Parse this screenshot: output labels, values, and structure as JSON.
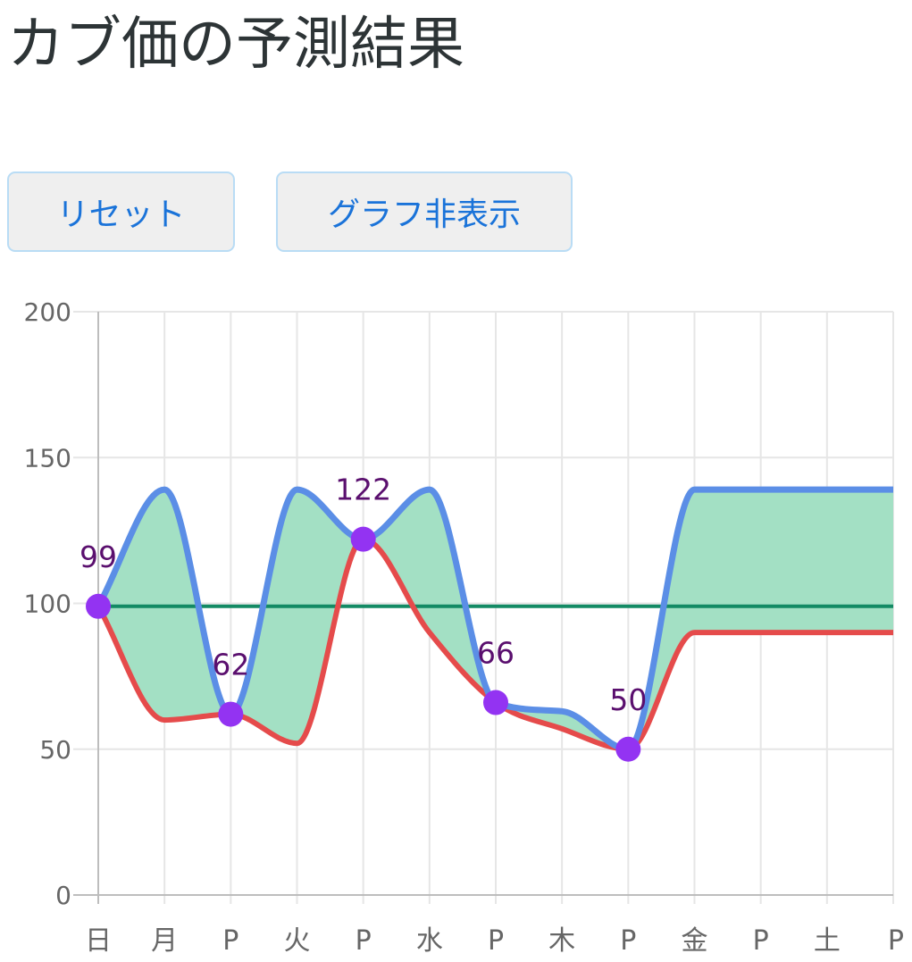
{
  "page": {
    "title": "カブ価の予測結果"
  },
  "buttons": {
    "reset_label": "リセット",
    "hide_graph_label": "グラフ非表示"
  },
  "colors": {
    "max_line": "#5b8ee6",
    "min_line": "#e54b4b",
    "band_fill": "#a3e0c4",
    "buy_price_line": "#138a64",
    "point": "#9333f2",
    "point_label": "#5a0f6e",
    "grid": "#e6e6e6"
  },
  "chart_data": {
    "type": "line",
    "categories": [
      "日",
      "月",
      "P",
      "火",
      "P",
      "水",
      "P",
      "木",
      "P",
      "金",
      "P",
      "土",
      "P"
    ],
    "ylim": [
      0,
      200
    ],
    "yticks": [
      0,
      50,
      100,
      150,
      200
    ],
    "grid": true,
    "series": [
      {
        "role": "max",
        "values": [
          99,
          139,
          62,
          139,
          122,
          139,
          66,
          63,
          50,
          139,
          139,
          139,
          139
        ]
      },
      {
        "role": "min",
        "values": [
          99,
          60,
          62,
          52,
          122,
          90,
          66,
          57,
          50,
          90,
          90,
          90,
          90
        ]
      },
      {
        "role": "buy_price",
        "values": [
          99,
          99,
          99,
          99,
          99,
          99,
          99,
          99,
          99,
          99,
          99,
          99,
          99
        ]
      }
    ],
    "points": [
      {
        "index": 0,
        "value": 99,
        "label": "99"
      },
      {
        "index": 2,
        "value": 62,
        "label": "62"
      },
      {
        "index": 4,
        "value": 122,
        "label": "122"
      },
      {
        "index": 6,
        "value": 66,
        "label": "66"
      },
      {
        "index": 8,
        "value": 50,
        "label": "50"
      }
    ]
  }
}
